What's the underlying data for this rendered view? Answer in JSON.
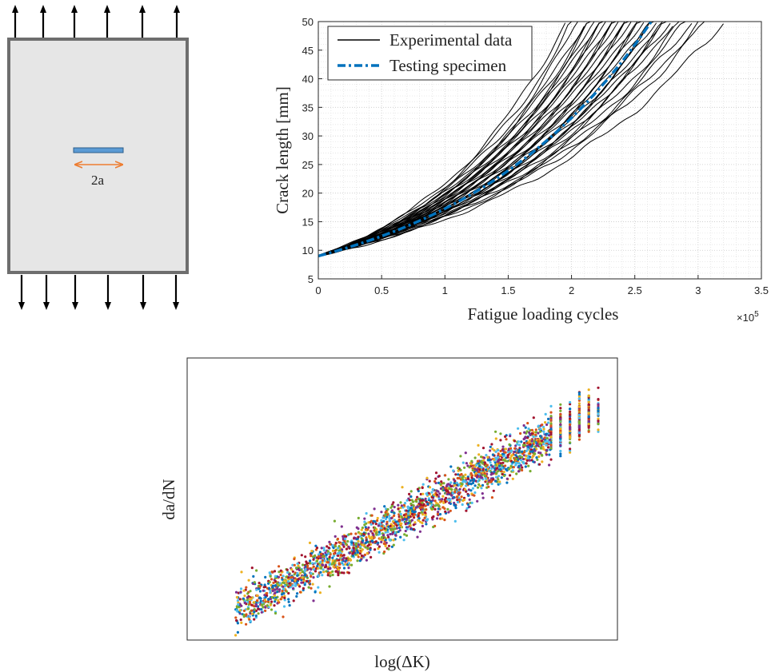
{
  "specimen": {
    "crack_label": "2a",
    "colors": {
      "plate_fill": "#e6e6e6",
      "plate_border": "#6e6e6e",
      "crack": "#5b9bd5",
      "dimension_arrow": "#ed7d31",
      "load_arrow": "#000000"
    }
  },
  "chart_data": [
    {
      "type": "line",
      "xlabel": "Fatigue loading cycles",
      "ylabel": "Crack length [mm]",
      "x_multiplier_label": "×10",
      "x_multiplier_exponent": "5",
      "xlim": [
        0,
        3.5
      ],
      "ylim": [
        5,
        50
      ],
      "xticks": [
        "0",
        "0.5",
        "1",
        "1.5",
        "2",
        "2.5",
        "3",
        "3.5"
      ],
      "yticks": [
        "5",
        "10",
        "15",
        "20",
        "25",
        "30",
        "35",
        "40",
        "45",
        "50"
      ],
      "grid": true,
      "legend_position": "top-left",
      "series": [
        {
          "name": "Experimental data",
          "style": "solid",
          "color": "#000000",
          "curve_model": "a = 9 * exp(k*N) until a = 50",
          "final_cycles_x1e5": [
            1.95,
            2.0,
            2.05,
            2.1,
            2.12,
            2.15,
            2.18,
            2.2,
            2.22,
            2.25,
            2.27,
            2.3,
            2.32,
            2.35,
            2.37,
            2.4,
            2.42,
            2.45,
            2.47,
            2.5,
            2.52,
            2.55,
            2.57,
            2.6,
            2.62,
            2.65,
            2.67,
            2.7,
            2.72,
            2.75,
            2.78,
            2.8,
            2.85,
            2.9,
            2.95,
            3.0,
            3.05,
            3.2
          ]
        },
        {
          "name": "Testing specimen",
          "style": "dash-dot",
          "color": "#0072bd",
          "final_cycles_x1e5": [
            2.63
          ]
        }
      ]
    },
    {
      "type": "scatter",
      "xlabel": "log(ΔK)",
      "ylabel": "da/dN",
      "axis_ticks": false,
      "trend": {
        "x_range": [
          0,
          1
        ],
        "y_start": 0.1,
        "y_end": 0.82
      },
      "palette": [
        "#0072bd",
        "#d95319",
        "#edb120",
        "#7e2f8e",
        "#77ac30",
        "#4dbeee",
        "#a2142f"
      ]
    }
  ]
}
